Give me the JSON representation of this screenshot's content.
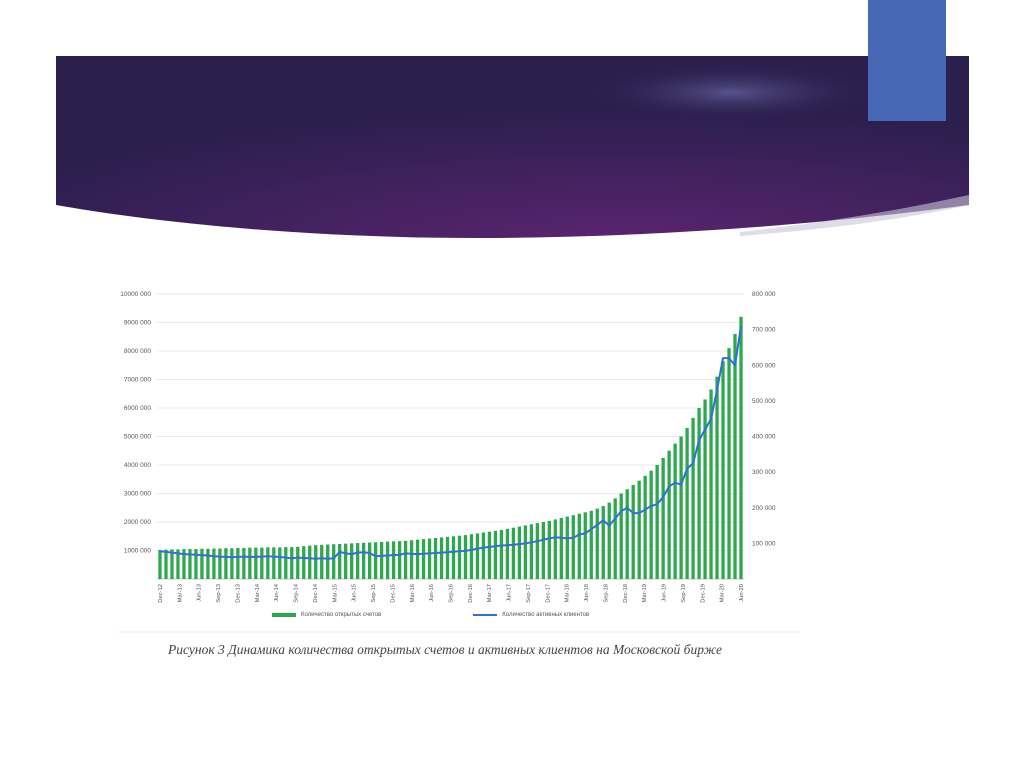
{
  "colors": {
    "banner_dark": "#2b1f4e",
    "banner_mid": "#5c2470",
    "accent_square": "#4667b4",
    "bars": "#2ea84f",
    "line": "#2f6fd6"
  },
  "caption": "Рисунок 3 Динамика количества открытых счетов и активных клиентов на Московской бирже",
  "chart_data": {
    "type": "bar",
    "left_axis": {
      "ylim": [
        0,
        10000000
      ],
      "ticks": [
        "",
        "1000 000",
        "2000 000",
        "3000 000",
        "4000 000",
        "5000 000",
        "6000 000",
        "7000 000",
        "8000 000",
        "9000 000",
        "10000 000"
      ]
    },
    "right_axis": {
      "ylim": [
        0,
        800000
      ],
      "ticks": [
        "",
        "100 000",
        "200 000",
        "300 000",
        "400 000",
        "500 000",
        "600 000",
        "700 000",
        "800 000"
      ]
    },
    "x_tick_labels": [
      "Dec-12",
      "Mar-13",
      "Jun-13",
      "Sep-13",
      "Dec-13",
      "Mar-14",
      "Jun-14",
      "Sep-14",
      "Dec-14",
      "Mar-15",
      "Jun-15",
      "Sep-15",
      "Dec-15",
      "Mar-16",
      "Jun-16",
      "Sep-16",
      "Dec-16",
      "Mar-17",
      "Jun-17",
      "Sep-17",
      "Dec-17",
      "Mar-18",
      "Jun-18",
      "Sep-18",
      "Dec-18",
      "Mar-19",
      "Jun-19",
      "Sep-19",
      "Dec-19",
      "Mar-20",
      "Jun-20"
    ],
    "grid": true,
    "legend_position": "bottom",
    "series": [
      {
        "name": "Количество открытых счетов",
        "kind": "bar",
        "axis": "left",
        "values": [
          1020000,
          1030000,
          1040000,
          1040000,
          1050000,
          1050000,
          1050000,
          1060000,
          1060000,
          1070000,
          1070000,
          1080000,
          1080000,
          1090000,
          1090000,
          1100000,
          1100000,
          1100000,
          1110000,
          1110000,
          1110000,
          1120000,
          1120000,
          1130000,
          1150000,
          1170000,
          1190000,
          1200000,
          1210000,
          1220000,
          1230000,
          1240000,
          1250000,
          1260000,
          1270000,
          1280000,
          1290000,
          1300000,
          1310000,
          1320000,
          1330000,
          1340000,
          1360000,
          1380000,
          1400000,
          1420000,
          1440000,
          1460000,
          1480000,
          1500000,
          1520000,
          1540000,
          1570000,
          1600000,
          1630000,
          1660000,
          1690000,
          1720000,
          1760000,
          1800000,
          1840000,
          1880000,
          1920000,
          1960000,
          2000000,
          2040000,
          2090000,
          2140000,
          2190000,
          2240000,
          2290000,
          2340000,
          2390000,
          2470000,
          2560000,
          2680000,
          2830000,
          3000000,
          3150000,
          3300000,
          3450000,
          3620000,
          3800000,
          4000000,
          4250000,
          4500000,
          4750000,
          5000000,
          5300000,
          5650000,
          6000000,
          6300000,
          6650000,
          7100000,
          7650000,
          8100000,
          8600000,
          9200000
        ]
      },
      {
        "name": "Количество активных клиентов",
        "kind": "line",
        "axis": "right",
        "values": [
          78000,
          76000,
          74000,
          72000,
          70000,
          69000,
          68000,
          67000,
          66000,
          64000,
          63000,
          62000,
          61000,
          62000,
          63000,
          62000,
          62000,
          63000,
          64000,
          63000,
          62000,
          60000,
          58000,
          60000,
          59000,
          58000,
          57000,
          58000,
          57000,
          58000,
          76000,
          72000,
          70000,
          74000,
          75000,
          73000,
          64000,
          65000,
          66000,
          67000,
          68000,
          72000,
          71000,
          70000,
          71000,
          72000,
          73000,
          74000,
          75000,
          77000,
          78000,
          79000,
          82000,
          85000,
          88000,
          90000,
          92000,
          94000,
          95000,
          96000,
          98000,
          100000,
          103000,
          106000,
          110000,
          114000,
          117000,
          116000,
          114000,
          116000,
          125000,
          128000,
          140000,
          152000,
          165000,
          150000,
          170000,
          190000,
          200000,
          185000,
          185000,
          195000,
          205000,
          210000,
          230000,
          260000,
          270000,
          265000,
          310000,
          325000,
          390000,
          420000,
          450000,
          530000,
          620000,
          620000,
          600000,
          710000
        ]
      }
    ]
  }
}
